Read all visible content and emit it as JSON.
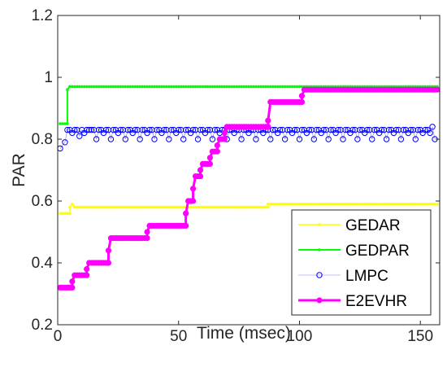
{
  "chart_data": {
    "type": "line",
    "title": "",
    "xlabel": "Time (msec)",
    "ylabel": "PAR",
    "xlim": [
      0,
      158
    ],
    "ylim": [
      0.2,
      1.2
    ],
    "xticks": [
      0,
      50,
      100,
      150
    ],
    "yticks": [
      0.2,
      0.4,
      0.6,
      0.8,
      1.0,
      1.2
    ],
    "xtick_labels": [
      "0",
      "50",
      "100",
      "150"
    ],
    "ytick_labels": [
      "0.2",
      "0.4",
      "0.6",
      "0.8",
      "1",
      "1.2"
    ],
    "grid": false,
    "legend_position": "bottom-right",
    "series": [
      {
        "name": "GEDAR",
        "color": "#ffff00",
        "marker": "dot",
        "line_width": 1.5,
        "step": true,
        "points": [
          [
            1,
            0.56
          ],
          [
            5,
            0.56
          ],
          [
            5,
            0.58
          ],
          [
            6,
            0.59
          ],
          [
            7,
            0.58
          ],
          [
            87,
            0.58
          ],
          [
            87,
            0.59
          ],
          [
            157,
            0.59
          ]
        ]
      },
      {
        "name": "GEDPAR",
        "color": "#00ff00",
        "marker": "dot",
        "line_width": 2,
        "step": true,
        "points": [
          [
            1,
            0.85
          ],
          [
            4,
            0.85
          ],
          [
            4,
            0.96
          ],
          [
            5,
            0.97
          ],
          [
            157,
            0.97
          ]
        ]
      },
      {
        "name": "LMPC",
        "color": "#0000ff",
        "marker": "circle",
        "line_width": 0.6,
        "line_alpha": 0.5,
        "step": false,
        "points": [
          [
            1,
            0.77
          ],
          [
            3,
            0.79
          ],
          [
            4,
            0.83
          ],
          [
            5,
            0.83
          ],
          [
            6,
            0.82
          ],
          [
            7,
            0.83
          ],
          [
            8,
            0.83
          ],
          [
            9,
            0.81
          ],
          [
            10,
            0.83
          ],
          [
            11,
            0.82
          ],
          [
            12,
            0.83
          ],
          [
            13,
            0.83
          ],
          [
            14,
            0.83
          ],
          [
            15,
            0.83
          ],
          [
            16,
            0.8
          ],
          [
            17,
            0.83
          ],
          [
            18,
            0.83
          ],
          [
            19,
            0.82
          ],
          [
            20,
            0.83
          ],
          [
            21,
            0.83
          ],
          [
            22,
            0.8
          ],
          [
            23,
            0.83
          ],
          [
            24,
            0.83
          ],
          [
            25,
            0.82
          ],
          [
            26,
            0.83
          ],
          [
            27,
            0.83
          ],
          [
            28,
            0.8
          ],
          [
            29,
            0.83
          ],
          [
            30,
            0.83
          ],
          [
            31,
            0.82
          ],
          [
            32,
            0.83
          ],
          [
            33,
            0.83
          ],
          [
            34,
            0.8
          ],
          [
            35,
            0.83
          ],
          [
            36,
            0.83
          ],
          [
            37,
            0.82
          ],
          [
            38,
            0.83
          ],
          [
            39,
            0.83
          ],
          [
            40,
            0.8
          ],
          [
            41,
            0.83
          ],
          [
            42,
            0.83
          ],
          [
            43,
            0.82
          ],
          [
            44,
            0.83
          ],
          [
            45,
            0.83
          ],
          [
            46,
            0.8
          ],
          [
            47,
            0.83
          ],
          [
            48,
            0.83
          ],
          [
            49,
            0.82
          ],
          [
            50,
            0.83
          ],
          [
            51,
            0.83
          ],
          [
            52,
            0.8
          ],
          [
            53,
            0.83
          ],
          [
            54,
            0.83
          ],
          [
            55,
            0.82
          ],
          [
            56,
            0.83
          ],
          [
            57,
            0.83
          ],
          [
            58,
            0.8
          ],
          [
            59,
            0.83
          ],
          [
            60,
            0.83
          ],
          [
            61,
            0.82
          ],
          [
            62,
            0.83
          ],
          [
            63,
            0.83
          ],
          [
            64,
            0.8
          ],
          [
            65,
            0.83
          ],
          [
            66,
            0.83
          ],
          [
            67,
            0.82
          ],
          [
            68,
            0.83
          ],
          [
            69,
            0.83
          ],
          [
            70,
            0.8
          ],
          [
            71,
            0.83
          ],
          [
            72,
            0.83
          ],
          [
            73,
            0.82
          ],
          [
            74,
            0.83
          ],
          [
            75,
            0.83
          ],
          [
            76,
            0.8
          ],
          [
            77,
            0.83
          ],
          [
            78,
            0.83
          ],
          [
            79,
            0.82
          ],
          [
            80,
            0.83
          ],
          [
            81,
            0.83
          ],
          [
            82,
            0.8
          ],
          [
            83,
            0.83
          ],
          [
            84,
            0.83
          ],
          [
            85,
            0.82
          ],
          [
            86,
            0.83
          ],
          [
            87,
            0.83
          ],
          [
            88,
            0.8
          ],
          [
            89,
            0.83
          ],
          [
            90,
            0.83
          ],
          [
            91,
            0.82
          ],
          [
            92,
            0.83
          ],
          [
            93,
            0.83
          ],
          [
            94,
            0.8
          ],
          [
            95,
            0.83
          ],
          [
            96,
            0.83
          ],
          [
            97,
            0.82
          ],
          [
            98,
            0.83
          ],
          [
            99,
            0.83
          ],
          [
            100,
            0.8
          ],
          [
            101,
            0.83
          ],
          [
            102,
            0.83
          ],
          [
            103,
            0.82
          ],
          [
            104,
            0.83
          ],
          [
            105,
            0.83
          ],
          [
            106,
            0.8
          ],
          [
            107,
            0.83
          ],
          [
            108,
            0.83
          ],
          [
            109,
            0.82
          ],
          [
            110,
            0.83
          ],
          [
            111,
            0.83
          ],
          [
            112,
            0.8
          ],
          [
            113,
            0.83
          ],
          [
            114,
            0.83
          ],
          [
            115,
            0.82
          ],
          [
            116,
            0.83
          ],
          [
            117,
            0.83
          ],
          [
            118,
            0.8
          ],
          [
            119,
            0.83
          ],
          [
            120,
            0.83
          ],
          [
            121,
            0.82
          ],
          [
            122,
            0.83
          ],
          [
            123,
            0.83
          ],
          [
            124,
            0.8
          ],
          [
            125,
            0.83
          ],
          [
            126,
            0.83
          ],
          [
            127,
            0.82
          ],
          [
            128,
            0.83
          ],
          [
            129,
            0.83
          ],
          [
            130,
            0.8
          ],
          [
            131,
            0.83
          ],
          [
            132,
            0.83
          ],
          [
            133,
            0.82
          ],
          [
            134,
            0.83
          ],
          [
            135,
            0.83
          ],
          [
            136,
            0.8
          ],
          [
            137,
            0.83
          ],
          [
            138,
            0.83
          ],
          [
            139,
            0.82
          ],
          [
            140,
            0.83
          ],
          [
            141,
            0.83
          ],
          [
            142,
            0.8
          ],
          [
            143,
            0.83
          ],
          [
            144,
            0.83
          ],
          [
            145,
            0.82
          ],
          [
            146,
            0.83
          ],
          [
            147,
            0.83
          ],
          [
            148,
            0.8
          ],
          [
            149,
            0.83
          ],
          [
            150,
            0.83
          ],
          [
            151,
            0.82
          ],
          [
            152,
            0.83
          ],
          [
            153,
            0.83
          ],
          [
            154,
            0.82
          ],
          [
            155,
            0.84
          ],
          [
            156,
            0.8
          ]
        ]
      },
      {
        "name": "E2EVHR",
        "color": "#ff00ff",
        "marker": "filled-circle",
        "line_width": 3,
        "step": true,
        "points": [
          [
            1,
            0.32
          ],
          [
            6,
            0.32
          ],
          [
            6,
            0.34
          ],
          [
            7,
            0.36
          ],
          [
            12,
            0.36
          ],
          [
            12,
            0.38
          ],
          [
            13,
            0.4
          ],
          [
            21,
            0.4
          ],
          [
            21,
            0.44
          ],
          [
            22,
            0.48
          ],
          [
            37,
            0.48
          ],
          [
            37,
            0.5
          ],
          [
            38,
            0.52
          ],
          [
            53,
            0.52
          ],
          [
            53,
            0.56
          ],
          [
            54,
            0.6
          ],
          [
            56,
            0.6
          ],
          [
            56,
            0.64
          ],
          [
            57,
            0.68
          ],
          [
            59,
            0.68
          ],
          [
            59,
            0.7
          ],
          [
            60,
            0.72
          ],
          [
            63,
            0.72
          ],
          [
            63,
            0.74
          ],
          [
            64,
            0.76
          ],
          [
            66,
            0.76
          ],
          [
            66,
            0.78
          ],
          [
            67,
            0.8
          ],
          [
            69,
            0.8
          ],
          [
            69,
            0.82
          ],
          [
            70,
            0.84
          ],
          [
            87,
            0.84
          ],
          [
            87,
            0.86
          ],
          [
            88,
            0.92
          ],
          [
            101,
            0.92
          ],
          [
            101,
            0.94
          ],
          [
            102,
            0.96
          ],
          [
            157,
            0.96
          ]
        ]
      }
    ]
  }
}
